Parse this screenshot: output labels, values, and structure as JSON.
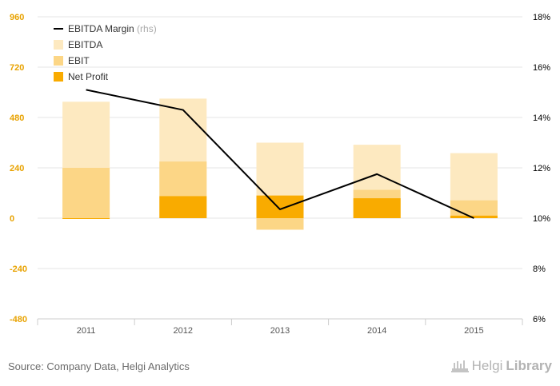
{
  "chart_data": {
    "type": "bar",
    "categories": [
      "2011",
      "2012",
      "2013",
      "2014",
      "2015"
    ],
    "series": [
      {
        "name": "EBITDA",
        "kind": "bar",
        "axis": "left",
        "color": "#fde9c0",
        "values": [
          555,
          570,
          360,
          350,
          310
        ]
      },
      {
        "name": "EBIT",
        "kind": "bar",
        "axis": "left",
        "color": "#fcd686",
        "values": [
          240,
          270,
          -55,
          135,
          85
        ]
      },
      {
        "name": "Net Profit",
        "kind": "bar",
        "axis": "left",
        "color": "#f9ab00",
        "values": [
          -3,
          105,
          108,
          95,
          12
        ]
      },
      {
        "name": "EBITDA Margin",
        "kind": "line",
        "axis": "right",
        "color": "#000000",
        "values": [
          15.1,
          14.3,
          10.35,
          11.75,
          10.0
        ]
      }
    ],
    "legend": {
      "items": [
        {
          "label": "EBITDA Margin",
          "suffix": "(rhs)",
          "marker": "line",
          "color": "#000000"
        },
        {
          "label": "EBITDA",
          "marker": "box",
          "color": "#fde9c0"
        },
        {
          "label": "EBIT",
          "marker": "box",
          "color": "#fcd686"
        },
        {
          "label": "Net Profit",
          "marker": "box",
          "color": "#f9ab00"
        }
      ],
      "position": "top-left"
    },
    "y_left": {
      "min": -480,
      "max": 960,
      "ticks": [
        960,
        720,
        480,
        240,
        0,
        -240,
        -480
      ],
      "tick_labels": [
        "960",
        "720",
        "480",
        "240",
        "0",
        "-240",
        "-480"
      ],
      "color": "#e8a200"
    },
    "y_right": {
      "min": 6,
      "max": 18,
      "ticks": [
        18,
        16,
        14,
        12,
        10,
        8,
        6
      ],
      "tick_labels": [
        "18%",
        "16%",
        "14%",
        "12%",
        "10%",
        "8%",
        "6%"
      ],
      "color": "#000000"
    },
    "grid": true
  },
  "footer": {
    "source": "Source: Company Data, Helgi Analytics",
    "brand_part1": "Helgi",
    "brand_part2": "Library"
  }
}
